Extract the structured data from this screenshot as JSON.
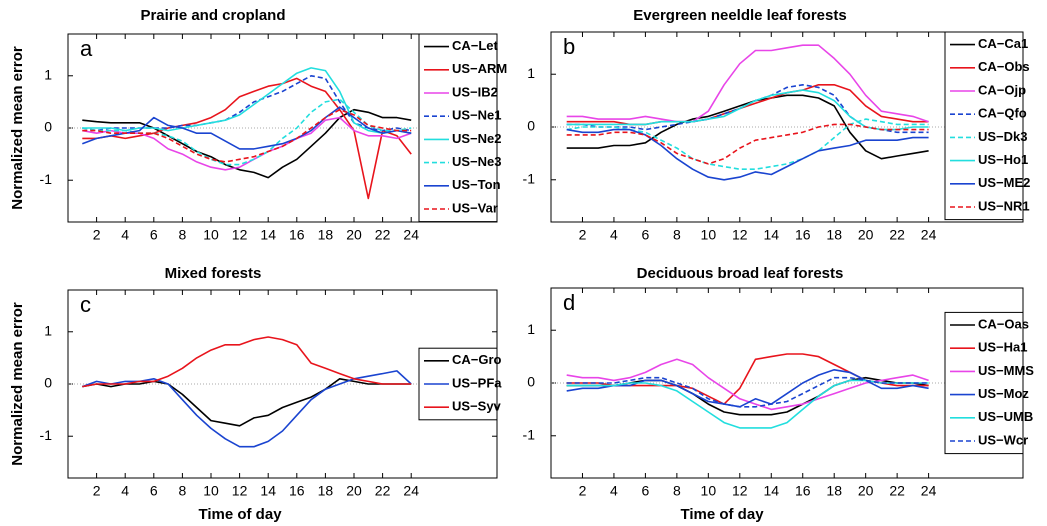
{
  "chart_data": [
    {
      "type": "line",
      "title": "Prairie and cropland",
      "panel_label": "a",
      "ylabel": "Normalized mean error",
      "x": [
        1,
        2,
        3,
        4,
        5,
        6,
        7,
        8,
        9,
        10,
        11,
        12,
        13,
        14,
        15,
        16,
        17,
        18,
        19,
        20,
        21,
        22,
        23,
        24
      ],
      "xlim": [
        0,
        30
      ],
      "xticks": [
        2,
        4,
        6,
        8,
        10,
        12,
        14,
        16,
        18,
        20,
        22,
        24
      ],
      "ylim": [
        -1.8,
        1.8
      ],
      "yticks": [
        -1,
        0,
        1
      ],
      "zero_line": true,
      "legend": "upper right",
      "series": [
        {
          "name": "CA−Let",
          "color": "#000000",
          "values": [
            0.15,
            0.12,
            0.1,
            0.1,
            0.1,
            0,
            -0.15,
            -0.3,
            -0.45,
            -0.55,
            -0.7,
            -0.8,
            -0.85,
            -0.95,
            -0.75,
            -0.6,
            -0.35,
            -0.1,
            0.2,
            0.35,
            0.3,
            0.2,
            0.2,
            0.15
          ]
        },
        {
          "name": "US−ARM",
          "color": "#e8141c",
          "values": [
            -0.2,
            -0.2,
            -0.15,
            -0.2,
            -0.15,
            -0.1,
            0,
            0.05,
            0.1,
            0.2,
            0.35,
            0.6,
            0.7,
            0.8,
            0.85,
            0.95,
            0.8,
            0.7,
            0.35,
            -0.05,
            -1.35,
            -0.05,
            -0.15,
            -0.5
          ]
        },
        {
          "name": "US−IB2",
          "color": "#e845e8",
          "values": [
            -0.05,
            -0.1,
            -0.05,
            -0.1,
            -0.1,
            -0.2,
            -0.4,
            -0.5,
            -0.65,
            -0.75,
            -0.8,
            -0.75,
            -0.6,
            -0.45,
            -0.35,
            -0.2,
            -0.1,
            0.15,
            0.2,
            -0.05,
            -0.15,
            -0.15,
            -0.2,
            -0.1
          ]
        },
        {
          "name": "US−Ne1",
          "color": "#1a44d0",
          "linestyle": "dashed",
          "values": [
            0,
            -0.05,
            0,
            0,
            0,
            0,
            0,
            0.05,
            0.05,
            0.1,
            0.15,
            0.3,
            0.5,
            0.6,
            0.7,
            0.85,
            1.0,
            0.95,
            0.5,
            0.1,
            0,
            -0.05,
            0,
            -0.05
          ]
        },
        {
          "name": "US−Ne2",
          "color": "#22dede",
          "values": [
            0,
            0,
            0,
            -0.05,
            0,
            0,
            -0.05,
            0,
            0.05,
            0.1,
            0.15,
            0.25,
            0.45,
            0.65,
            0.85,
            1.05,
            1.15,
            1.1,
            0.7,
            0.1,
            -0.05,
            -0.1,
            -0.05,
            -0.1
          ]
        },
        {
          "name": "US−Ne3",
          "color": "#22dede",
          "linestyle": "dashed",
          "values": [
            0,
            -0.05,
            -0.05,
            -0.05,
            -0.1,
            -0.1,
            -0.15,
            -0.25,
            -0.45,
            -0.6,
            -0.7,
            -0.7,
            -0.6,
            -0.45,
            -0.2,
            0,
            0.3,
            0.5,
            0.55,
            0.3,
            0.05,
            -0.05,
            -0.05,
            0
          ]
        },
        {
          "name": "US−Ton",
          "color": "#1a44d0",
          "values": [
            -0.3,
            -0.2,
            -0.15,
            -0.1,
            -0.05,
            0.2,
            0.05,
            0,
            -0.1,
            -0.1,
            -0.25,
            -0.4,
            -0.4,
            -0.35,
            -0.3,
            -0.2,
            -0.05,
            0.2,
            0.4,
            0.2,
            0,
            -0.1,
            -0.05,
            -0.1
          ]
        },
        {
          "name": "US−Var",
          "color": "#e8141c",
          "linestyle": "dashed",
          "values": [
            -0.05,
            -0.05,
            -0.1,
            -0.1,
            -0.1,
            -0.1,
            -0.2,
            -0.35,
            -0.5,
            -0.6,
            -0.65,
            -0.6,
            -0.55,
            -0.45,
            -0.35,
            -0.2,
            0,
            0.2,
            0.35,
            0.25,
            0.05,
            0,
            -0.05,
            -0.05
          ]
        }
      ]
    },
    {
      "type": "line",
      "title": "Evergreen neeldle leaf forests",
      "panel_label": "b",
      "x": [
        1,
        2,
        3,
        4,
        5,
        6,
        7,
        8,
        9,
        10,
        11,
        12,
        13,
        14,
        15,
        16,
        17,
        18,
        19,
        20,
        21,
        22,
        23,
        24
      ],
      "xlim": [
        0,
        30
      ],
      "xticks": [
        2,
        4,
        6,
        8,
        10,
        12,
        14,
        16,
        18,
        20,
        22,
        24
      ],
      "ylim": [
        -1.8,
        1.8
      ],
      "yticks": [
        -1,
        0,
        1
      ],
      "zero_line": true,
      "legend": "upper right",
      "series": [
        {
          "name": "CA−Ca1",
          "color": "#000000",
          "values": [
            -0.4,
            -0.4,
            -0.4,
            -0.35,
            -0.35,
            -0.3,
            -0.1,
            0.05,
            0.15,
            0.2,
            0.3,
            0.4,
            0.5,
            0.55,
            0.6,
            0.6,
            0.55,
            0.4,
            -0.1,
            -0.45,
            -0.6,
            -0.55,
            -0.5,
            -0.45
          ]
        },
        {
          "name": "CA−Obs",
          "color": "#e8141c",
          "values": [
            0.1,
            0.1,
            0.1,
            0.1,
            0.05,
            0.05,
            0.1,
            0.1,
            0.1,
            0.15,
            0.25,
            0.35,
            0.45,
            0.55,
            0.65,
            0.7,
            0.8,
            0.8,
            0.7,
            0.4,
            0.2,
            0.15,
            0.1,
            0.1
          ]
        },
        {
          "name": "CA−Ojp",
          "color": "#e845e8",
          "values": [
            0.2,
            0.2,
            0.15,
            0.15,
            0.15,
            0.2,
            0.15,
            0.1,
            0.1,
            0.3,
            0.8,
            1.2,
            1.45,
            1.45,
            1.5,
            1.55,
            1.55,
            1.3,
            1.0,
            0.6,
            0.3,
            0.25,
            0.2,
            0.1
          ]
        },
        {
          "name": "CA−Qfo",
          "color": "#1a44d0",
          "linestyle": "dashed",
          "values": [
            0.05,
            0.05,
            0,
            0,
            0,
            -0.05,
            0,
            0.05,
            0.1,
            0.15,
            0.25,
            0.35,
            0.5,
            0.6,
            0.75,
            0.8,
            0.75,
            0.6,
            0.2,
            0,
            -0.05,
            -0.1,
            -0.1,
            -0.1
          ]
        },
        {
          "name": "US−Dk3",
          "color": "#22dede",
          "linestyle": "dashed",
          "values": [
            -0.05,
            0,
            0,
            0,
            -0.05,
            -0.1,
            -0.25,
            -0.4,
            -0.6,
            -0.7,
            -0.75,
            -0.8,
            -0.8,
            -0.75,
            -0.7,
            -0.6,
            -0.45,
            -0.2,
            0.05,
            0.15,
            0.1,
            0.05,
            0.05,
            0.05
          ]
        },
        {
          "name": "US−Ho1",
          "color": "#22dede",
          "values": [
            0.05,
            0.05,
            0.05,
            0.05,
            0.05,
            0.05,
            0.1,
            0.1,
            0.1,
            0.15,
            0.2,
            0.35,
            0.5,
            0.6,
            0.65,
            0.7,
            0.65,
            0.5,
            0.2,
            0,
            -0.05,
            -0.05,
            0,
            0
          ]
        },
        {
          "name": "US−ME2",
          "color": "#1a44d0",
          "values": [
            -0.05,
            -0.1,
            -0.1,
            -0.05,
            -0.05,
            -0.15,
            -0.35,
            -0.6,
            -0.8,
            -0.95,
            -1.0,
            -0.95,
            -0.85,
            -0.9,
            -0.75,
            -0.6,
            -0.45,
            -0.4,
            -0.35,
            -0.25,
            -0.25,
            -0.25,
            -0.2,
            -0.2
          ]
        },
        {
          "name": "US−NR1",
          "color": "#e8141c",
          "linestyle": "dashed",
          "values": [
            -0.15,
            -0.15,
            -0.15,
            -0.1,
            -0.1,
            -0.15,
            -0.3,
            -0.5,
            -0.6,
            -0.7,
            -0.6,
            -0.4,
            -0.25,
            -0.2,
            -0.15,
            -0.1,
            0,
            0.05,
            0.05,
            0,
            -0.05,
            -0.05,
            -0.05,
            -0.05
          ]
        }
      ]
    },
    {
      "type": "line",
      "title": "Mixed forests",
      "panel_label": "c",
      "ylabel": "Normalized mean error",
      "xlabel": "Time of day",
      "x": [
        1,
        2,
        3,
        4,
        5,
        6,
        7,
        8,
        9,
        10,
        11,
        12,
        13,
        14,
        15,
        16,
        17,
        18,
        19,
        20,
        21,
        22,
        23,
        24
      ],
      "xlim": [
        0,
        30
      ],
      "xticks": [
        2,
        4,
        6,
        8,
        10,
        12,
        14,
        16,
        18,
        20,
        22,
        24
      ],
      "ylim": [
        -1.8,
        1.8
      ],
      "yticks": [
        -1,
        0,
        1
      ],
      "zero_line": true,
      "legend": "center right",
      "series": [
        {
          "name": "CA−Gro",
          "color": "#000000",
          "values": [
            -0.05,
            0,
            -0.05,
            0,
            0,
            0.05,
            0,
            -0.2,
            -0.45,
            -0.7,
            -0.75,
            -0.8,
            -0.65,
            -0.6,
            -0.45,
            -0.35,
            -0.25,
            -0.1,
            0.1,
            0.05,
            0,
            0,
            0,
            0
          ]
        },
        {
          "name": "US−PFa",
          "color": "#1a44d0",
          "values": [
            -0.05,
            0.05,
            0,
            0.05,
            0.05,
            0.1,
            0,
            -0.3,
            -0.6,
            -0.85,
            -1.05,
            -1.2,
            -1.2,
            -1.1,
            -0.9,
            -0.6,
            -0.3,
            -0.1,
            0,
            0.1,
            0.15,
            0.2,
            0.25,
            0
          ]
        },
        {
          "name": "US−Syv",
          "color": "#e8141c",
          "values": [
            -0.05,
            0,
            0,
            0,
            0.05,
            0.05,
            0.15,
            0.3,
            0.5,
            0.65,
            0.75,
            0.75,
            0.85,
            0.9,
            0.85,
            0.75,
            0.4,
            0.3,
            0.2,
            0.1,
            0.05,
            0,
            0,
            0
          ]
        }
      ]
    },
    {
      "type": "line",
      "title": "Deciduous broad leaf forests",
      "panel_label": "d",
      "xlabel": "Time of day",
      "x": [
        1,
        2,
        3,
        4,
        5,
        6,
        7,
        8,
        9,
        10,
        11,
        12,
        13,
        14,
        15,
        16,
        17,
        18,
        19,
        20,
        21,
        22,
        23,
        24
      ],
      "xlim": [
        0,
        30
      ],
      "xticks": [
        2,
        4,
        6,
        8,
        10,
        12,
        14,
        16,
        18,
        20,
        22,
        24
      ],
      "ylim": [
        -1.8,
        1.8
      ],
      "yticks": [
        -1,
        0,
        1
      ],
      "zero_line": true,
      "legend": "center right",
      "series": [
        {
          "name": "CA−Oas",
          "color": "#000000",
          "values": [
            -0.05,
            -0.05,
            -0.05,
            -0.05,
            0,
            0.05,
            0.05,
            -0.05,
            -0.2,
            -0.4,
            -0.55,
            -0.6,
            -0.6,
            -0.6,
            -0.55,
            -0.4,
            -0.25,
            -0.05,
            0.05,
            0.1,
            0.05,
            0,
            0,
            -0.05
          ]
        },
        {
          "name": "US−Ha1",
          "color": "#e8141c",
          "values": [
            0,
            0,
            0,
            -0.05,
            -0.05,
            -0.05,
            -0.05,
            -0.05,
            -0.1,
            -0.25,
            -0.4,
            -0.1,
            0.45,
            0.5,
            0.55,
            0.55,
            0.5,
            0.35,
            0.2,
            0.05,
            0,
            -0.05,
            -0.05,
            -0.05
          ]
        },
        {
          "name": "US−MMS",
          "color": "#e845e8",
          "values": [
            0.15,
            0.1,
            0.1,
            0.05,
            0.1,
            0.2,
            0.35,
            0.45,
            0.35,
            0.1,
            -0.1,
            -0.3,
            -0.4,
            -0.5,
            -0.45,
            -0.4,
            -0.3,
            -0.2,
            -0.1,
            0,
            0.05,
            0.1,
            0.15,
            0.05
          ]
        },
        {
          "name": "US−Moz",
          "color": "#1a44d0",
          "values": [
            -0.15,
            -0.1,
            -0.1,
            -0.05,
            -0.05,
            0.05,
            0.05,
            -0.05,
            -0.2,
            -0.35,
            -0.4,
            -0.45,
            -0.3,
            -0.4,
            -0.2,
            0,
            0.15,
            0.25,
            0.2,
            0.05,
            -0.1,
            -0.1,
            -0.05,
            -0.1
          ]
        },
        {
          "name": "US−UMB",
          "color": "#22dede",
          "values": [
            -0.05,
            -0.05,
            -0.05,
            -0.05,
            0,
            0,
            -0.05,
            -0.15,
            -0.35,
            -0.55,
            -0.75,
            -0.85,
            -0.85,
            -0.85,
            -0.75,
            -0.5,
            -0.25,
            -0.05,
            0.05,
            0.05,
            0,
            0,
            0,
            0
          ]
        },
        {
          "name": "US−Wcr",
          "color": "#1a44d0",
          "linestyle": "dashed",
          "values": [
            0,
            0,
            0,
            0,
            0.05,
            0.1,
            0.1,
            0,
            -0.1,
            -0.3,
            -0.4,
            -0.45,
            -0.45,
            -0.4,
            -0.35,
            -0.2,
            -0.05,
            0.1,
            0.1,
            0.05,
            0,
            0,
            0,
            0
          ]
        }
      ]
    }
  ]
}
